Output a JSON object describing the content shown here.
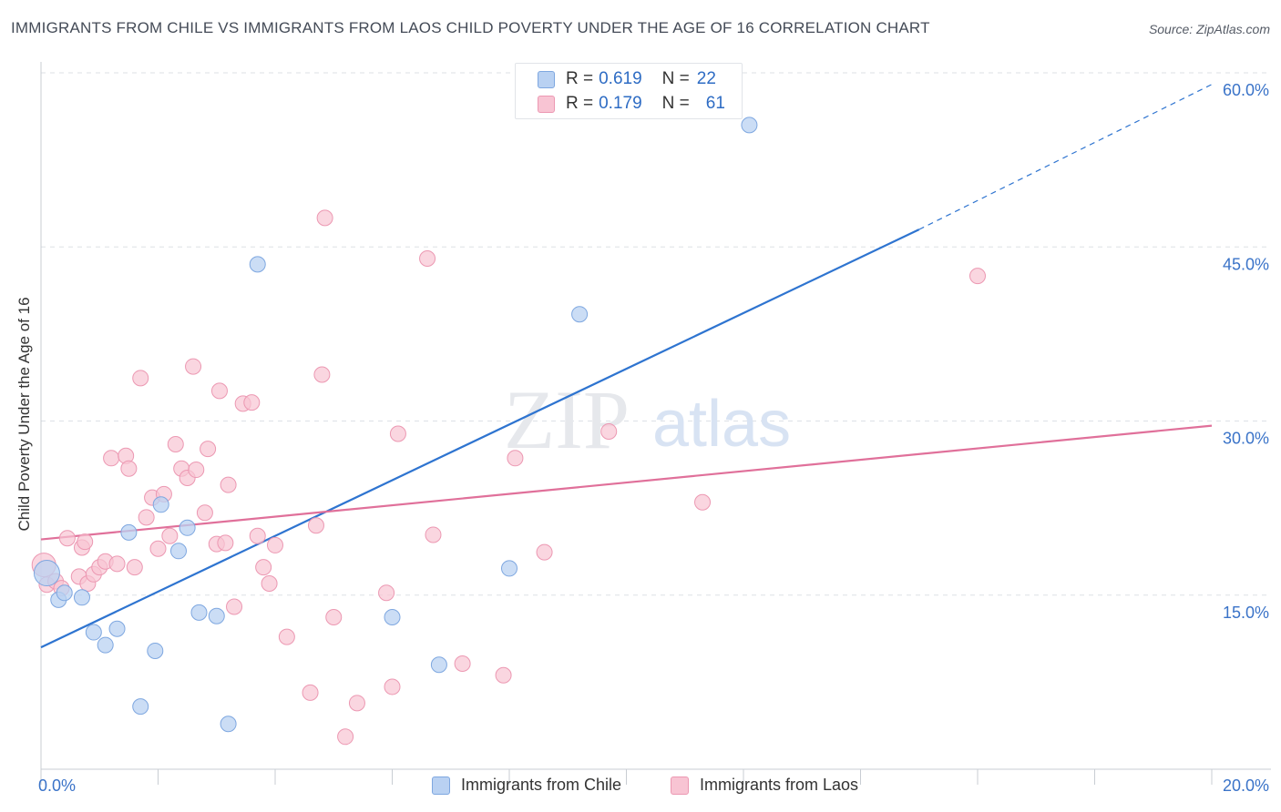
{
  "title": "IMMIGRANTS FROM CHILE VS IMMIGRANTS FROM LAOS CHILD POVERTY UNDER THE AGE OF 16 CORRELATION CHART",
  "source": "Source: ZipAtlas.com",
  "watermark": {
    "zip": "ZIP",
    "atlas": "atlas"
  },
  "legend": {
    "chile": {
      "r_label": "R =",
      "r_value": "0.619",
      "n_label": "N =",
      "n_value": "22"
    },
    "laos": {
      "r_label": "R =",
      "r_value": "0.179",
      "n_label": "N =",
      "n_value": "61"
    }
  },
  "colors": {
    "chile_fill": "#b9d1f2",
    "chile_stroke": "#7ea7e0",
    "chile_line": "#2e74d0",
    "laos_fill": "#f8c4d3",
    "laos_stroke": "#ec98b2",
    "laos_line": "#e0709a",
    "tick_label": "#3a73c8",
    "grid": "#dde1e6"
  },
  "chart_data": {
    "type": "scatter",
    "title": "IMMIGRANTS FROM CHILE VS IMMIGRANTS FROM LAOS CHILD POVERTY UNDER THE AGE OF 16 CORRELATION CHART",
    "xlabel": "",
    "ylabel": "Child Poverty Under the Age of 16",
    "xlim": [
      0,
      20
    ],
    "ylim": [
      0,
      60
    ],
    "x_tick_labels": [
      {
        "value": 0,
        "label": "0.0%"
      },
      {
        "value": 20,
        "label": "20.0%"
      }
    ],
    "y_tick_labels": [
      {
        "value": 15,
        "label": "15.0%"
      },
      {
        "value": 30,
        "label": "30.0%"
      },
      {
        "value": 45,
        "label": "45.0%"
      },
      {
        "value": 60,
        "label": "60.0%"
      }
    ],
    "grid": true,
    "series": [
      {
        "name": "Immigrants from Chile",
        "r": 0.619,
        "n": 22,
        "points": [
          [
            0.1,
            16.9
          ],
          [
            0.3,
            14.6
          ],
          [
            0.4,
            15.2
          ],
          [
            0.7,
            14.8
          ],
          [
            0.9,
            11.8
          ],
          [
            1.1,
            10.7
          ],
          [
            1.3,
            12.1
          ],
          [
            1.5,
            20.4
          ],
          [
            1.7,
            5.4
          ],
          [
            1.95,
            10.2
          ],
          [
            2.05,
            22.8
          ],
          [
            2.35,
            18.8
          ],
          [
            2.5,
            20.8
          ],
          [
            2.7,
            13.5
          ],
          [
            3.0,
            13.2
          ],
          [
            3.2,
            3.9
          ],
          [
            3.7,
            43.5
          ],
          [
            6.0,
            13.1
          ],
          [
            6.8,
            9.0
          ],
          [
            8.0,
            17.3
          ],
          [
            9.2,
            39.2
          ],
          [
            12.1,
            55.5
          ]
        ],
        "trend": {
          "x0": 0,
          "y0": 10.5,
          "x1": 15,
          "y1": 46.5,
          "dashed_to_x": 20,
          "dashed_to_y": 59
        }
      },
      {
        "name": "Immigrants from Laos",
        "r": 0.179,
        "n": 61,
        "points": [
          [
            0.05,
            17.6
          ],
          [
            0.1,
            15.9
          ],
          [
            0.25,
            16.2
          ],
          [
            0.35,
            15.6
          ],
          [
            0.45,
            19.9
          ],
          [
            0.65,
            16.6
          ],
          [
            0.7,
            19.1
          ],
          [
            0.75,
            19.6
          ],
          [
            0.8,
            16.0
          ],
          [
            0.9,
            16.8
          ],
          [
            1.0,
            17.4
          ],
          [
            1.1,
            17.9
          ],
          [
            1.2,
            26.8
          ],
          [
            1.3,
            17.7
          ],
          [
            1.45,
            27.0
          ],
          [
            1.5,
            25.9
          ],
          [
            1.6,
            17.4
          ],
          [
            1.7,
            33.7
          ],
          [
            1.8,
            21.7
          ],
          [
            1.9,
            23.4
          ],
          [
            2.0,
            19.0
          ],
          [
            2.1,
            23.7
          ],
          [
            2.2,
            20.1
          ],
          [
            2.3,
            28.0
          ],
          [
            2.4,
            25.9
          ],
          [
            2.5,
            25.1
          ],
          [
            2.6,
            34.7
          ],
          [
            2.65,
            25.8
          ],
          [
            2.8,
            22.1
          ],
          [
            2.85,
            27.6
          ],
          [
            3.0,
            19.4
          ],
          [
            3.05,
            32.6
          ],
          [
            3.15,
            19.5
          ],
          [
            3.2,
            24.5
          ],
          [
            3.3,
            14.0
          ],
          [
            3.45,
            31.5
          ],
          [
            3.6,
            31.6
          ],
          [
            3.7,
            20.1
          ],
          [
            3.8,
            17.4
          ],
          [
            3.9,
            16.0
          ],
          [
            4.0,
            19.3
          ],
          [
            4.2,
            11.4
          ],
          [
            4.6,
            6.6
          ],
          [
            4.7,
            21.0
          ],
          [
            4.8,
            34.0
          ],
          [
            4.85,
            47.5
          ],
          [
            5.0,
            13.1
          ],
          [
            5.2,
            2.8
          ],
          [
            5.4,
            5.7
          ],
          [
            5.9,
            15.2
          ],
          [
            6.0,
            7.1
          ],
          [
            6.1,
            28.9
          ],
          [
            6.6,
            44.0
          ],
          [
            6.7,
            20.2
          ],
          [
            7.2,
            9.1
          ],
          [
            7.9,
            8.1
          ],
          [
            8.1,
            26.8
          ],
          [
            8.6,
            18.7
          ],
          [
            9.7,
            29.1
          ],
          [
            11.3,
            23.0
          ],
          [
            16.0,
            42.5
          ]
        ],
        "trend": {
          "x0": 0,
          "y0": 19.8,
          "x1": 20,
          "y1": 29.6
        }
      }
    ]
  },
  "bottom_legend": {
    "chile": "Immigrants from Chile",
    "laos": "Immigrants from Laos"
  }
}
